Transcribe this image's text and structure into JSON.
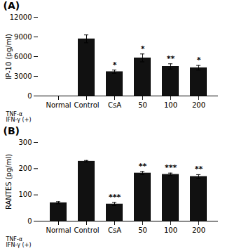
{
  "chart_data": [
    {
      "type": "bar",
      "title": "(A)",
      "categories": [
        "Normal",
        "Control",
        "CsA",
        "50",
        "100",
        "200"
      ],
      "values": [
        0,
        8700,
        3700,
        5800,
        4500,
        4300
      ],
      "errors": [
        0,
        600,
        250,
        600,
        400,
        350
      ],
      "significance": [
        null,
        null,
        "*",
        "*",
        "**",
        "*"
      ],
      "ylabel": "IP-10 (pg/ml)",
      "ylim": [
        0,
        12000
      ],
      "yticks": [
        0,
        3000,
        6000,
        9000,
        12000
      ],
      "color": "#111111",
      "grid": false,
      "annotations": [
        "TNF-α",
        "IFN-γ (+)"
      ]
    },
    {
      "type": "bar",
      "title": "(B)",
      "categories": [
        "Normal",
        "Control",
        "CsA",
        "50",
        "100",
        "200"
      ],
      "values": [
        70,
        228,
        65,
        183,
        178,
        170
      ],
      "errors": [
        4,
        3,
        6,
        6,
        5,
        7
      ],
      "significance": [
        null,
        null,
        "***",
        "**",
        "***",
        "**"
      ],
      "ylabel": "RANTES (pg/ml)",
      "ylim": [
        0,
        300
      ],
      "yticks": [
        0,
        100,
        200,
        300
      ],
      "color": "#111111",
      "grid": false,
      "annotations": [
        "TNF-α",
        "IFN-γ (+)"
      ]
    }
  ]
}
